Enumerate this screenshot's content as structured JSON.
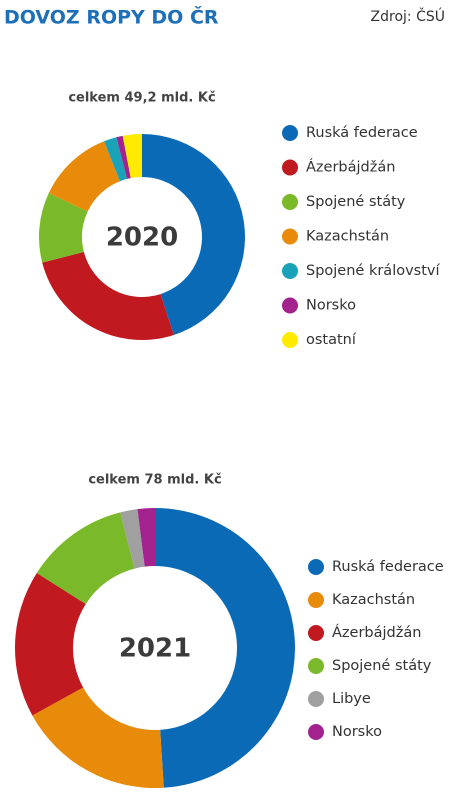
{
  "header": {
    "title": "DOVOZ ROPY DO ČR",
    "source": "Zdroj: ČSÚ"
  },
  "chart_data": [
    {
      "type": "donut",
      "subtitle": "celkem 49,2 mld. Kč",
      "label": "2020",
      "categories": [
        "Ruská federace",
        "Ázerbájdžán",
        "Spojené státy",
        "Kazachstán",
        "Spojené království",
        "Norsko",
        "ostatní"
      ],
      "values": [
        45,
        26,
        11,
        12,
        2,
        1,
        3
      ],
      "colors": [
        "#0a6ab5",
        "#c0191f",
        "#7ab929",
        "#e88b0a",
        "#1aa3b8",
        "#a3228d",
        "#ffea00"
      ]
    },
    {
      "type": "donut",
      "subtitle": "celkem 78 mld. Kč",
      "label": "2021",
      "categories": [
        "Ruská federace",
        "Kazachstán",
        "Ázerbájdžán",
        "Spojené státy",
        "Libye",
        "Norsko"
      ],
      "values": [
        49,
        18,
        17,
        12,
        2,
        2
      ],
      "colors": [
        "#0a6ab5",
        "#e88b0a",
        "#c0191f",
        "#7ab929",
        "#a0a0a0",
        "#a3228d"
      ]
    }
  ]
}
